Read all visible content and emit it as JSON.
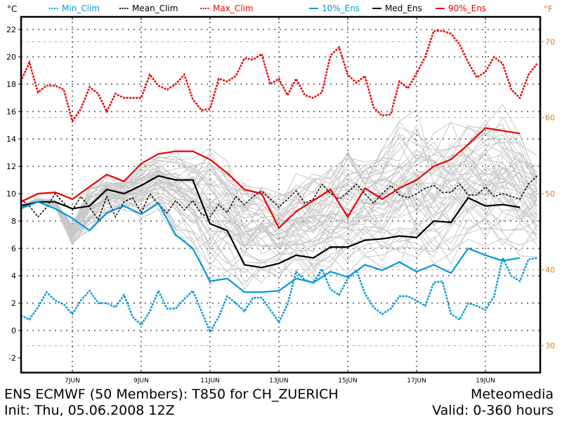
{
  "chart_data": {
    "type": "line",
    "title": "ENS ECMWF (50 Members): T850 for CH_ZUERICH",
    "subtitle": "Init: Thu, 05.06.2008 12Z",
    "credit": "Meteomedia",
    "valid": "Valid: 0-360 hours",
    "ylabel_left": "°C",
    "ylabel_right": "°F",
    "ylim": [
      -2,
      23
    ],
    "xlim": [
      5.5,
      20.5
    ],
    "y_ticks": [
      -2,
      0,
      2,
      4,
      6,
      8,
      10,
      12,
      14,
      16,
      18,
      20,
      22
    ],
    "y_right_ticks": [
      30,
      40,
      50,
      60,
      70
    ],
    "x_ticks": [
      {
        "day": 7,
        "label": "7JUN"
      },
      {
        "day": 9,
        "label": "9JUN"
      },
      {
        "day": 11,
        "label": "11JUN"
      },
      {
        "day": 13,
        "label": "13JUN"
      },
      {
        "day": 15,
        "label": "15JUN"
      },
      {
        "day": 17,
        "label": "17JUN"
      },
      {
        "day": 19,
        "label": "19JUN"
      }
    ],
    "grid": true,
    "legend": [
      {
        "name": "Min_Clim",
        "style": "dotted",
        "color": "#0099dd"
      },
      {
        "name": "Mean_Clim",
        "style": "dotted",
        "color": "#000000"
      },
      {
        "name": "Max_Clim",
        "style": "dotted",
        "color": "#ee0000"
      },
      {
        "name": "10%_Ens",
        "style": "solid",
        "color": "#0099dd"
      },
      {
        "name": "Med_Ens",
        "style": "solid",
        "color": "#000000"
      },
      {
        "name": "90%_Ens",
        "style": "solid",
        "color": "#ee0000"
      }
    ],
    "legend_placement": "top",
    "series": [
      {
        "name": "Max_Clim",
        "x": [
          5.5,
          5.75,
          6,
          6.25,
          6.5,
          6.75,
          7,
          7.25,
          7.5,
          7.75,
          8,
          8.25,
          8.5,
          8.75,
          9,
          9.25,
          9.5,
          9.75,
          10,
          10.25,
          10.5,
          10.75,
          11,
          11.25,
          11.5,
          11.75,
          12,
          12.25,
          12.5,
          12.75,
          13,
          13.25,
          13.5,
          13.75,
          14,
          14.25,
          14.5,
          14.75,
          15,
          15.25,
          15.5,
          15.75,
          16,
          16.25,
          16.5,
          16.75,
          17,
          17.25,
          17.5,
          17.75,
          18,
          18.25,
          18.5,
          18.75,
          19,
          19.25,
          19.5,
          19.75,
          20,
          20.25,
          20.5
        ],
        "values": [
          18.2,
          19.6,
          17.4,
          17.9,
          17.9,
          17.6,
          15.3,
          16.2,
          17.8,
          17.3,
          16.0,
          17.3,
          17.0,
          17.0,
          17.0,
          18.7,
          17.9,
          17.6,
          18.0,
          18.7,
          16.9,
          16.1,
          16.2,
          18.4,
          18.2,
          18.6,
          19.9,
          19.8,
          20.2,
          18.0,
          18.4,
          17.2,
          18.4,
          17.2,
          17.0,
          17.4,
          20.1,
          20.7,
          18.7,
          18.1,
          18.6,
          16.3,
          15.7,
          15.8,
          18.2,
          17.7,
          18.8,
          20.0,
          21.9,
          21.9,
          21.7,
          20.9,
          19.6,
          18.5,
          18.9,
          20.0,
          19.5,
          17.6,
          17.0,
          18.7,
          19.5
        ]
      },
      {
        "name": "Mean_Clim",
        "x": [
          5.5,
          5.75,
          6,
          6.25,
          6.5,
          6.75,
          7,
          7.25,
          7.5,
          7.75,
          8,
          8.25,
          8.5,
          8.75,
          9,
          9.25,
          9.5,
          9.75,
          10,
          10.25,
          10.5,
          10.75,
          11,
          11.25,
          11.5,
          11.75,
          12,
          12.25,
          12.5,
          12.75,
          13,
          13.25,
          13.5,
          13.75,
          14,
          14.25,
          14.5,
          14.75,
          15,
          15.25,
          15.5,
          15.75,
          16,
          16.25,
          16.5,
          16.75,
          17,
          17.25,
          17.5,
          17.75,
          18,
          18.25,
          18.5,
          18.75,
          19,
          19.25,
          19.5,
          19.75,
          20,
          20.25,
          20.5
        ],
        "values": [
          9.6,
          9.1,
          8.3,
          9.0,
          10.0,
          9.3,
          8.8,
          9.8,
          9.0,
          8.1,
          9.8,
          8.3,
          9.4,
          9.7,
          8.6,
          10.0,
          9.2,
          8.6,
          9.5,
          8.8,
          9.5,
          8.5,
          8.3,
          9.2,
          8.6,
          9.8,
          9.2,
          9.8,
          10.2,
          9.6,
          9.0,
          9.6,
          10.2,
          9.3,
          9.6,
          10.7,
          10.0,
          9.6,
          10.1,
          10.7,
          10.0,
          9.3,
          10.0,
          10.6,
          9.9,
          9.7,
          10.0,
          10.4,
          10.6,
          10.1,
          10.1,
          10.7,
          9.9,
          9.9,
          10.5,
          9.8,
          10.0,
          9.8,
          9.6,
          10.7,
          11.3
        ]
      },
      {
        "name": "Min_Clim",
        "x": [
          5.5,
          5.75,
          6,
          6.25,
          6.5,
          6.75,
          7,
          7.25,
          7.5,
          7.75,
          8,
          8.25,
          8.5,
          8.75,
          9,
          9.25,
          9.5,
          9.75,
          10,
          10.25,
          10.5,
          10.75,
          11,
          11.25,
          11.5,
          11.75,
          12,
          12.25,
          12.5,
          12.75,
          13,
          13.25,
          13.5,
          13.75,
          14,
          14.25,
          14.5,
          14.75,
          15,
          15.25,
          15.5,
          15.75,
          16,
          16.25,
          16.5,
          16.75,
          17,
          17.25,
          17.5,
          17.75,
          18,
          18.25,
          18.5,
          18.75,
          19,
          19.25,
          19.5,
          19.75,
          20,
          20.25,
          20.5
        ],
        "values": [
          1.1,
          0.8,
          1.7,
          2.8,
          2.2,
          1.9,
          1.2,
          2.2,
          2.9,
          2.0,
          2.0,
          1.7,
          2.6,
          1.0,
          0.4,
          1.4,
          2.9,
          1.6,
          1.6,
          2.3,
          2.9,
          1.4,
          -0.1,
          1.0,
          2.5,
          2.0,
          1.4,
          2.4,
          2.4,
          1.5,
          0.6,
          1.9,
          4.3,
          3.7,
          3.5,
          4.5,
          3.0,
          2.6,
          3.8,
          4.4,
          2.7,
          1.7,
          1.2,
          1.6,
          2.5,
          2.5,
          2.2,
          1.8,
          3.5,
          3.6,
          1.2,
          0.8,
          2.0,
          1.8,
          1.5,
          2.5,
          5.3,
          4.0,
          3.6,
          5.2,
          5.3
        ]
      },
      {
        "name": "90%_Ens",
        "x": [
          5.5,
          6,
          6.5,
          7,
          7.5,
          8,
          8.5,
          9,
          9.5,
          10,
          10.5,
          11,
          11.5,
          12,
          12.5,
          13,
          13.5,
          14,
          14.5,
          15,
          15.5,
          16,
          16.5,
          17,
          17.5,
          18,
          18.5,
          19,
          19.5,
          20
        ],
        "values": [
          9.4,
          10.0,
          10.1,
          9.6,
          10.5,
          11.4,
          10.9,
          12.2,
          12.9,
          13.1,
          13.1,
          12.5,
          11.5,
          10.3,
          10.0,
          7.5,
          8.7,
          9.5,
          10.3,
          8.3,
          10.4,
          9.6,
          10.4,
          11.0,
          12.0,
          12.5,
          13.6,
          14.8,
          14.6,
          14.4
        ]
      },
      {
        "name": "Med_Ens",
        "x": [
          5.5,
          6,
          6.5,
          7,
          7.5,
          8,
          8.5,
          9,
          9.5,
          10,
          10.5,
          11,
          11.5,
          12,
          12.5,
          13,
          13.5,
          14,
          14.5,
          15,
          15.5,
          16,
          16.5,
          17,
          17.5,
          18,
          18.5,
          19,
          19.5,
          20
        ],
        "values": [
          9.1,
          9.4,
          9.4,
          8.9,
          9.1,
          10.3,
          10.0,
          10.6,
          11.3,
          11.0,
          11.0,
          7.8,
          7.3,
          4.8,
          4.6,
          4.9,
          5.5,
          5.3,
          6.1,
          6.1,
          6.6,
          6.7,
          6.9,
          6.8,
          8.0,
          7.9,
          9.7,
          9.1,
          9.2,
          9.0
        ]
      },
      {
        "name": "10%_Ens",
        "x": [
          5.5,
          6,
          6.5,
          7,
          7.5,
          8,
          8.5,
          9,
          9.5,
          10,
          10.5,
          11,
          11.5,
          12,
          12.5,
          13,
          13.5,
          14,
          14.5,
          15,
          15.5,
          16,
          16.5,
          17,
          17.5,
          18,
          18.5,
          19,
          19.5,
          20
        ],
        "values": [
          8.9,
          9.4,
          8.9,
          8.2,
          7.3,
          8.6,
          9.1,
          8.5,
          9.3,
          7.0,
          6.0,
          3.6,
          3.8,
          2.8,
          2.8,
          2.9,
          3.8,
          3.5,
          4.3,
          3.9,
          4.8,
          4.4,
          5.0,
          4.3,
          4.8,
          4.2,
          6.0,
          5.5,
          5.1,
          5.3
        ]
      }
    ],
    "ensemble_members": {
      "color": "#c8c8c8",
      "count": 50,
      "x": [
        5.5,
        6,
        6.5,
        7,
        7.5,
        8,
        8.5,
        9,
        9.5,
        10,
        10.5,
        11,
        11.5,
        12,
        12.5,
        13,
        13.5,
        14,
        14.5,
        15,
        15.5,
        16,
        16.5,
        17,
        17.5,
        18,
        18.5,
        19,
        19.5,
        20,
        20.5
      ],
      "spread_low": [
        8.8,
        9.2,
        8.7,
        5.5,
        7.0,
        8.2,
        8.6,
        8.1,
        8.5,
        6.5,
        5.5,
        3.2,
        3.4,
        2.6,
        3.4,
        3.2,
        3.6,
        3.1,
        4.0,
        3.7,
        4.6,
        4.0,
        4.0,
        3.6,
        3.8,
        3.9,
        5.5,
        4.8,
        4.6,
        4.8,
        4.6
      ],
      "spread_high": [
        9.6,
        10.1,
        10.3,
        9.9,
        10.8,
        11.6,
        11.2,
        12.4,
        13.2,
        13.6,
        13.4,
        13.8,
        13.0,
        11.8,
        11.4,
        11.0,
        11.8,
        12.0,
        12.8,
        14.0,
        13.4,
        14.0,
        16.0,
        16.8,
        15.6,
        16.4,
        16.2,
        16.0,
        17.0,
        15.4,
        13.6
      ]
    }
  }
}
